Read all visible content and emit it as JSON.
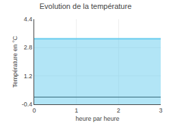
{
  "chart_data": {
    "type": "area",
    "title": "Evolution de la température",
    "xlabel": "heure par heure",
    "ylabel": "Température en °C",
    "x": [
      0,
      3
    ],
    "values": [
      3.3,
      3.3
    ],
    "color": "#66ccee",
    "xlim": [
      0,
      3
    ],
    "ylim": [
      -0.4,
      4.4
    ],
    "xticks": [
      0,
      1,
      2,
      3
    ],
    "yticks": [
      -0.4,
      1.2,
      2.8,
      4.4
    ],
    "grid": true
  }
}
